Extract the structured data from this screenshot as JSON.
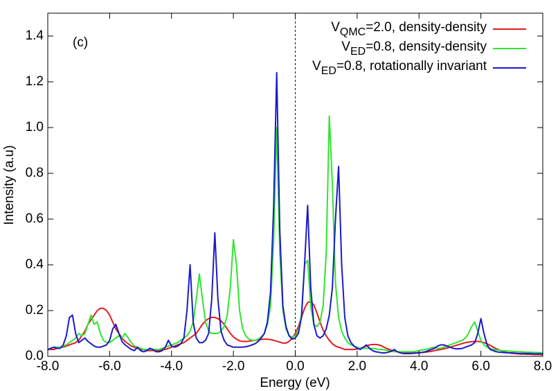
{
  "chart_data": {
    "type": "line",
    "annotation": "(c)",
    "x_label": "Energy (eV)",
    "y_label": "Intensity (a.u)",
    "xlim": [
      -8,
      8
    ],
    "ylim": [
      0,
      1.5
    ],
    "xticks": [
      {
        "value": -8,
        "label": "-8.0"
      },
      {
        "value": -6,
        "label": "-6.0"
      },
      {
        "value": -4,
        "label": "-4.0"
      },
      {
        "value": -2,
        "label": "-2.0"
      },
      {
        "value": 0,
        "label": "0.0"
      },
      {
        "value": 2,
        "label": "2.0"
      },
      {
        "value": 4,
        "label": "4.0"
      },
      {
        "value": 6,
        "label": "6.0"
      },
      {
        "value": 8,
        "label": "8.0"
      }
    ],
    "yticks": [
      {
        "value": 0,
        "label": "0.0"
      },
      {
        "value": 0.2,
        "label": "0.2"
      },
      {
        "value": 0.4,
        "label": "0.4"
      },
      {
        "value": 0.6,
        "label": "0.6"
      },
      {
        "value": 0.8,
        "label": "0.8"
      },
      {
        "value": 1.0,
        "label": "1.0"
      },
      {
        "value": 1.2,
        "label": "1.2"
      },
      {
        "value": 1.4,
        "label": "1.4"
      }
    ],
    "vline": {
      "x": 0,
      "style": "dashed"
    },
    "legend": "top-right",
    "x": [
      -8.0,
      -7.9,
      -7.8,
      -7.7,
      -7.6,
      -7.5,
      -7.4,
      -7.3,
      -7.2,
      -7.1,
      -7.0,
      -6.9,
      -6.8,
      -6.7,
      -6.6,
      -6.5,
      -6.4,
      -6.3,
      -6.2,
      -6.1,
      -6.0,
      -5.9,
      -5.8,
      -5.7,
      -5.6,
      -5.5,
      -5.4,
      -5.3,
      -5.2,
      -5.1,
      -5.0,
      -4.9,
      -4.8,
      -4.7,
      -4.6,
      -4.5,
      -4.4,
      -4.3,
      -4.2,
      -4.1,
      -4.0,
      -3.9,
      -3.8,
      -3.7,
      -3.6,
      -3.5,
      -3.4,
      -3.3,
      -3.2,
      -3.1,
      -3.0,
      -2.9,
      -2.8,
      -2.7,
      -2.6,
      -2.5,
      -2.4,
      -2.3,
      -2.2,
      -2.1,
      -2.0,
      -1.9,
      -1.8,
      -1.7,
      -1.6,
      -1.5,
      -1.4,
      -1.3,
      -1.2,
      -1.1,
      -1.0,
      -0.9,
      -0.8,
      -0.7,
      -0.6,
      -0.5,
      -0.4,
      -0.3,
      -0.2,
      -0.1,
      0.0,
      0.1,
      0.2,
      0.3,
      0.4,
      0.5,
      0.6,
      0.7,
      0.8,
      0.9,
      1.0,
      1.1,
      1.2,
      1.3,
      1.4,
      1.5,
      1.6,
      1.7,
      1.8,
      1.9,
      2.0,
      2.1,
      2.2,
      2.3,
      2.4,
      2.5,
      2.6,
      2.7,
      2.8,
      2.9,
      3.0,
      3.1,
      3.2,
      3.3,
      3.4,
      3.5,
      3.6,
      3.7,
      3.8,
      3.9,
      4.0,
      4.1,
      4.2,
      4.3,
      4.4,
      4.5,
      4.6,
      4.7,
      4.8,
      4.9,
      5.0,
      5.1,
      5.2,
      5.3,
      5.4,
      5.5,
      5.6,
      5.7,
      5.8,
      5.9,
      6.0,
      6.1,
      6.2,
      6.3,
      6.4,
      6.5,
      6.6,
      6.7,
      6.8,
      6.9,
      7.0,
      7.1,
      7.2,
      7.3,
      7.4,
      7.5,
      7.6,
      7.7,
      7.8,
      7.9,
      8.0
    ],
    "series": [
      {
        "name": "VQMC=2.0, density-density",
        "color": "#e41a1c",
        "values": [
          0.03,
          0.03,
          0.03,
          0.035,
          0.04,
          0.04,
          0.045,
          0.05,
          0.055,
          0.06,
          0.07,
          0.09,
          0.11,
          0.14,
          0.16,
          0.18,
          0.2,
          0.21,
          0.21,
          0.2,
          0.18,
          0.15,
          0.12,
          0.1,
          0.08,
          0.065,
          0.055,
          0.045,
          0.04,
          0.035,
          0.03,
          0.03,
          0.025,
          0.025,
          0.025,
          0.025,
          0.025,
          0.03,
          0.03,
          0.035,
          0.04,
          0.045,
          0.05,
          0.055,
          0.06,
          0.07,
          0.08,
          0.09,
          0.1,
          0.12,
          0.14,
          0.155,
          0.165,
          0.17,
          0.17,
          0.165,
          0.155,
          0.14,
          0.12,
          0.1,
          0.085,
          0.075,
          0.068,
          0.065,
          0.065,
          0.066,
          0.068,
          0.07,
          0.072,
          0.074,
          0.075,
          0.075,
          0.073,
          0.07,
          0.066,
          0.062,
          0.058,
          0.058,
          0.065,
          0.08,
          0.1,
          0.13,
          0.17,
          0.21,
          0.235,
          0.24,
          0.225,
          0.19,
          0.15,
          0.115,
          0.09,
          0.07,
          0.055,
          0.045,
          0.04,
          0.035,
          0.03,
          0.03,
          0.03,
          0.03,
          0.032,
          0.035,
          0.04,
          0.045,
          0.05,
          0.052,
          0.052,
          0.05,
          0.045,
          0.038,
          0.032,
          0.027,
          0.023,
          0.02,
          0.018,
          0.016,
          0.015,
          0.015,
          0.015,
          0.015,
          0.016,
          0.017,
          0.018,
          0.02,
          0.022,
          0.025,
          0.028,
          0.03,
          0.033,
          0.036,
          0.04,
          0.044,
          0.048,
          0.052,
          0.056,
          0.06,
          0.062,
          0.064,
          0.065,
          0.065,
          0.064,
          0.06,
          0.055,
          0.048,
          0.04,
          0.033,
          0.027,
          0.022,
          0.018,
          0.015,
          0.013,
          0.012,
          0.011,
          0.01,
          0.01,
          0.009,
          0.009,
          0.008,
          0.008,
          0.008,
          0.007
        ]
      },
      {
        "name": "VED=0.8, density-density",
        "color": "#2ce62c",
        "values": [
          0.03,
          0.035,
          0.04,
          0.04,
          0.04,
          0.045,
          0.05,
          0.06,
          0.07,
          0.08,
          0.1,
          0.09,
          0.1,
          0.14,
          0.18,
          0.14,
          0.15,
          0.1,
          0.07,
          0.06,
          0.06,
          0.07,
          0.08,
          0.09,
          0.08,
          0.1,
          0.08,
          0.06,
          0.045,
          0.04,
          0.035,
          0.03,
          0.03,
          0.03,
          0.03,
          0.03,
          0.03,
          0.035,
          0.04,
          0.045,
          0.05,
          0.055,
          0.06,
          0.07,
          0.08,
          0.09,
          0.11,
          0.15,
          0.25,
          0.36,
          0.25,
          0.15,
          0.11,
          0.1,
          0.1,
          0.1,
          0.11,
          0.13,
          0.18,
          0.3,
          0.51,
          0.4,
          0.2,
          0.12,
          0.09,
          0.075,
          0.07,
          0.07,
          0.075,
          0.085,
          0.1,
          0.14,
          0.22,
          0.5,
          1.0,
          0.45,
          0.2,
          0.12,
          0.09,
          0.085,
          0.09,
          0.11,
          0.18,
          0.4,
          0.42,
          0.22,
          0.14,
          0.13,
          0.15,
          0.22,
          0.45,
          1.05,
          0.75,
          0.32,
          0.17,
          0.11,
          0.08,
          0.06,
          0.05,
          0.045,
          0.04,
          0.035,
          0.035,
          0.035,
          0.035,
          0.035,
          0.033,
          0.03,
          0.03,
          0.028,
          0.025,
          0.022,
          0.02,
          0.02,
          0.02,
          0.02,
          0.02,
          0.02,
          0.02,
          0.022,
          0.025,
          0.028,
          0.03,
          0.033,
          0.038,
          0.04,
          0.035,
          0.035,
          0.04,
          0.045,
          0.05,
          0.055,
          0.06,
          0.065,
          0.07,
          0.08,
          0.1,
          0.13,
          0.15,
          0.11,
          0.07,
          0.05,
          0.04,
          0.035,
          0.03,
          0.028,
          0.026,
          0.025,
          0.024,
          0.023,
          0.022,
          0.021,
          0.02,
          0.02,
          0.019,
          0.018,
          0.018,
          0.017,
          0.017,
          0.016,
          0.016
        ]
      },
      {
        "name": "VED=0.8, rotationally invariant",
        "color": "#1a1acc",
        "values": [
          0.03,
          0.035,
          0.04,
          0.035,
          0.035,
          0.05,
          0.09,
          0.17,
          0.18,
          0.1,
          0.06,
          0.07,
          0.08,
          0.065,
          0.055,
          0.045,
          0.04,
          0.04,
          0.045,
          0.05,
          0.07,
          0.12,
          0.14,
          0.1,
          0.065,
          0.05,
          0.04,
          0.03,
          0.025,
          0.04,
          0.025,
          0.02,
          0.025,
          0.035,
          0.03,
          0.02,
          0.02,
          0.025,
          0.04,
          0.07,
          0.045,
          0.04,
          0.045,
          0.055,
          0.08,
          0.2,
          0.4,
          0.15,
          0.08,
          0.06,
          0.06,
          0.07,
          0.1,
          0.25,
          0.54,
          0.25,
          0.11,
          0.07,
          0.05,
          0.045,
          0.04,
          0.04,
          0.04,
          0.04,
          0.042,
          0.045,
          0.05,
          0.055,
          0.065,
          0.08,
          0.1,
          0.15,
          0.28,
          0.65,
          1.24,
          0.55,
          0.22,
          0.13,
          0.09,
          0.075,
          0.08,
          0.1,
          0.17,
          0.4,
          0.66,
          0.3,
          0.14,
          0.09,
          0.08,
          0.09,
          0.12,
          0.18,
          0.3,
          0.6,
          0.83,
          0.4,
          0.17,
          0.09,
          0.06,
          0.045,
          0.035,
          0.03,
          0.04,
          0.05,
          0.035,
          0.025,
          0.02,
          0.018,
          0.015,
          0.015,
          0.018,
          0.022,
          0.03,
          0.02,
          0.015,
          0.012,
          0.012,
          0.012,
          0.013,
          0.014,
          0.015,
          0.017,
          0.02,
          0.025,
          0.03,
          0.035,
          0.045,
          0.05,
          0.05,
          0.045,
          0.04,
          0.035,
          0.033,
          0.033,
          0.035,
          0.04,
          0.045,
          0.05,
          0.06,
          0.1,
          0.165,
          0.1,
          0.05,
          0.03,
          0.025,
          0.02,
          0.018,
          0.017,
          0.016,
          0.015,
          0.015,
          0.014,
          0.013,
          0.013,
          0.013,
          0.012,
          0.012,
          0.011,
          0.011,
          0.011,
          0.01
        ]
      }
    ]
  }
}
